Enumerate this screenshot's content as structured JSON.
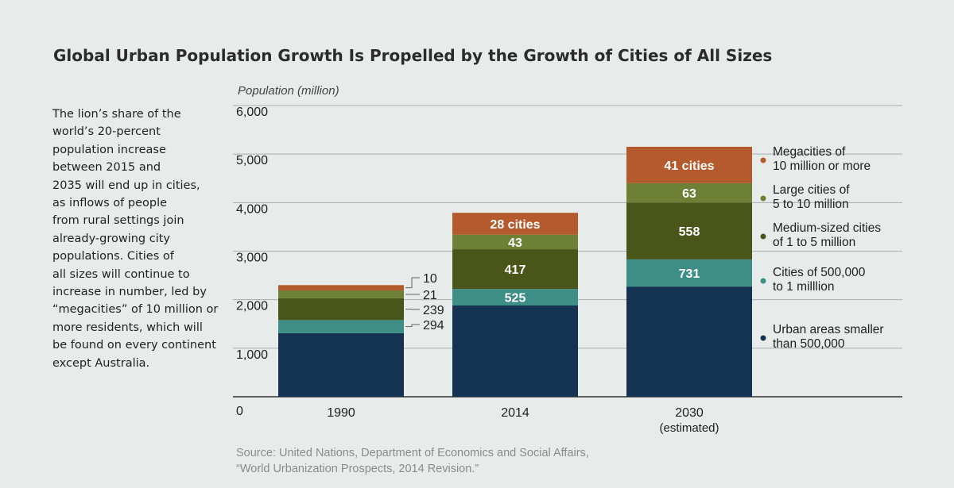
{
  "title": "Global Urban Population Growth Is Propelled by the Growth of Cities of All Sizes",
  "side_text": [
    "The lion’s share of the",
    "world’s 20-percent",
    "population increase",
    "between 2015 and",
    "2035 will end up in cities,",
    "as inflows of people",
    "from rural settings join",
    "already-growing city",
    "populations. Cities of",
    "all sizes will continue to",
    "increase in number, led by",
    "“megacities” of 10 million or",
    "more residents, which will",
    "be found on every continent",
    "except Australia."
  ],
  "source": [
    "Source: United Nations, Department of Economics and Social Affairs,",
    "“World Urbanization Prospects, 2014 Revision.”"
  ],
  "chart_data": {
    "type": "bar",
    "stacked": true,
    "ylabel": "Population (million)",
    "ylim": [
      0,
      6000
    ],
    "yticks": [
      "0",
      "1,000",
      "2,000",
      "3,000",
      "4,000",
      "5,000",
      "6,000"
    ],
    "ytick_values": [
      0,
      1000,
      2000,
      3000,
      4000,
      5000,
      6000
    ],
    "grid": true,
    "legend_position": "right",
    "categories": [
      "1990",
      "2014",
      "2030"
    ],
    "category_sublabels": [
      "",
      "",
      "(estimated)"
    ],
    "series": [
      {
        "name": "Urban areas smaller than 500,000",
        "legend_lines": [
          "Urban areas smaller",
          "than 500,000"
        ],
        "color": "#143352",
        "values": [
          1310,
          1880,
          2270
        ],
        "labels": [
          "",
          "",
          ""
        ]
      },
      {
        "name": "Cities of 500,000 to 1 milllion",
        "legend_lines": [
          "Cities of 500,000",
          "to 1 milllion"
        ],
        "color": "#3d8e86",
        "values": [
          270,
          340,
          560
        ],
        "labels": [
          "294",
          "525",
          "731"
        ]
      },
      {
        "name": "Medium-sized cities of 1 to 5 million",
        "legend_lines": [
          "Medium-sized cities",
          "of 1 to 5 million"
        ],
        "color": "#4a5519",
        "values": [
          450,
          820,
          1170
        ],
        "labels": [
          "239",
          "417",
          "558"
        ]
      },
      {
        "name": "Large cities of 5 to 10 million",
        "legend_lines": [
          "Large cities of",
          "5 to 10 million"
        ],
        "color": "#6e7f36",
        "values": [
          160,
          300,
          400
        ],
        "labels": [
          "21",
          "43",
          "63"
        ]
      },
      {
        "name": "Megacities of 10 million or more",
        "legend_lines": [
          "Megacities of",
          "10 million or more"
        ],
        "color": "#b55a2c",
        "values": [
          110,
          450,
          750
        ],
        "labels": [
          "10",
          "28 cities",
          "41 cities"
        ]
      }
    ]
  }
}
